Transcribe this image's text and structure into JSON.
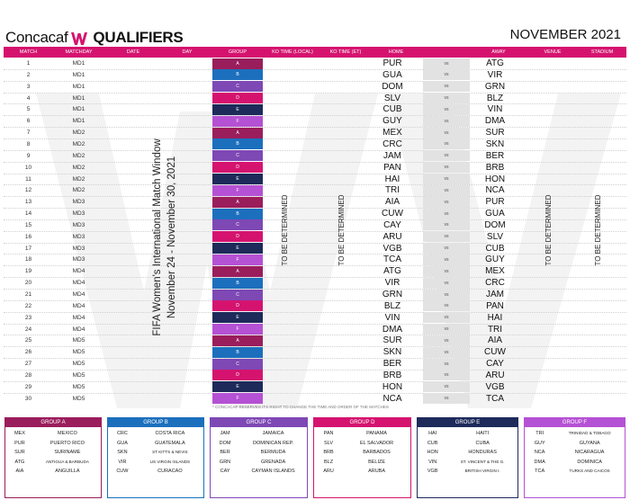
{
  "header": {
    "brand": "Concacaf",
    "title": "QUALIFIERS",
    "month": "NOVEMBER 2021",
    "brand_color": "#d5136f"
  },
  "columns": {
    "match": "MATCH",
    "matchday": "MATCHDAY",
    "date": "DATE",
    "day": "DAY",
    "group": "GROUP",
    "ko_local": "KO TIME (LOCAL)",
    "ko_et": "KO TIME (ET)",
    "home": "HOME",
    "away": "AWAY",
    "venue": "VENUE",
    "stadium": "STADIUM"
  },
  "window_title": "FIFA Women's International Match Window",
  "window_dates": "November 24 - November 30, 2021",
  "tbd": "TO BE DETERMINED",
  "vs_label": "vs",
  "group_colors": {
    "A": "#9a1d5c",
    "B": "#1c6fbd",
    "C": "#7e48b5",
    "D": "#d5136f",
    "E": "#1d2a5a",
    "F": "#b551d4"
  },
  "matches": [
    {
      "num": "1",
      "md": "MD1",
      "group": "A",
      "home": "PUR",
      "away": "ATG"
    },
    {
      "num": "2",
      "md": "MD1",
      "group": "B",
      "home": "GUA",
      "away": "VIR"
    },
    {
      "num": "3",
      "md": "MD1",
      "group": "C",
      "home": "DOM",
      "away": "GRN"
    },
    {
      "num": "4",
      "md": "MD1",
      "group": "D",
      "home": "SLV",
      "away": "BLZ"
    },
    {
      "num": "5",
      "md": "MD1",
      "group": "E",
      "home": "CUB",
      "away": "VIN"
    },
    {
      "num": "6",
      "md": "MD1",
      "group": "F",
      "home": "GUY",
      "away": "DMA"
    },
    {
      "num": "7",
      "md": "MD2",
      "group": "A",
      "home": "MEX",
      "away": "SUR"
    },
    {
      "num": "8",
      "md": "MD2",
      "group": "B",
      "home": "CRC",
      "away": "SKN"
    },
    {
      "num": "9",
      "md": "MD2",
      "group": "C",
      "home": "JAM",
      "away": "BER"
    },
    {
      "num": "10",
      "md": "MD2",
      "group": "D",
      "home": "PAN",
      "away": "BRB"
    },
    {
      "num": "11",
      "md": "MD2",
      "group": "E",
      "home": "HAI",
      "away": "HON"
    },
    {
      "num": "12",
      "md": "MD2",
      "group": "F",
      "home": "TRI",
      "away": "NCA"
    },
    {
      "num": "13",
      "md": "MD3",
      "group": "A",
      "home": "AIA",
      "away": "PUR"
    },
    {
      "num": "14",
      "md": "MD3",
      "group": "B",
      "home": "CUW",
      "away": "GUA"
    },
    {
      "num": "15",
      "md": "MD3",
      "group": "C",
      "home": "CAY",
      "away": "DOM"
    },
    {
      "num": "16",
      "md": "MD3",
      "group": "D",
      "home": "ARU",
      "away": "SLV"
    },
    {
      "num": "17",
      "md": "MD3",
      "group": "E",
      "home": "VGB",
      "away": "CUB"
    },
    {
      "num": "18",
      "md": "MD3",
      "group": "F",
      "home": "TCA",
      "away": "GUY"
    },
    {
      "num": "19",
      "md": "MD4",
      "group": "A",
      "home": "ATG",
      "away": "MEX"
    },
    {
      "num": "20",
      "md": "MD4",
      "group": "B",
      "home": "VIR",
      "away": "CRC"
    },
    {
      "num": "21",
      "md": "MD4",
      "group": "C",
      "home": "GRN",
      "away": "JAM"
    },
    {
      "num": "22",
      "md": "MD4",
      "group": "D",
      "home": "BLZ",
      "away": "PAN"
    },
    {
      "num": "23",
      "md": "MD4",
      "group": "E",
      "home": "VIN",
      "away": "HAI"
    },
    {
      "num": "24",
      "md": "MD4",
      "group": "F",
      "home": "DMA",
      "away": "TRI"
    },
    {
      "num": "25",
      "md": "MD5",
      "group": "A",
      "home": "SUR",
      "away": "AIA"
    },
    {
      "num": "26",
      "md": "MD5",
      "group": "B",
      "home": "SKN",
      "away": "CUW"
    },
    {
      "num": "27",
      "md": "MD5",
      "group": "C",
      "home": "BER",
      "away": "CAY"
    },
    {
      "num": "28",
      "md": "MD5",
      "group": "D",
      "home": "BRB",
      "away": "ARU"
    },
    {
      "num": "29",
      "md": "MD5",
      "group": "E",
      "home": "HON",
      "away": "VGB"
    },
    {
      "num": "30",
      "md": "MD5",
      "group": "F",
      "home": "NCA",
      "away": "TCA"
    }
  ],
  "disclaimer": "* CONCACAF RESERVES ITS RIGHT TO CHANGE THE TIME AND ORDER OF THE MATCHES",
  "groups": [
    {
      "label": "GROUP A",
      "key": "A",
      "teams": [
        {
          "code": "MEX",
          "name": "MEXICO"
        },
        {
          "code": "PUR",
          "name": "PUERTO RICO"
        },
        {
          "code": "SUR",
          "name": "SURINAME"
        },
        {
          "code": "ATG",
          "name": "ANTIGUA & BARBUDA"
        },
        {
          "code": "AIA",
          "name": "ANGUILLA"
        }
      ]
    },
    {
      "label": "GROUP B",
      "key": "B",
      "teams": [
        {
          "code": "CRC",
          "name": "COSTA RICA"
        },
        {
          "code": "GUA",
          "name": "GUATEMALA"
        },
        {
          "code": "SKN",
          "name": "ST KITTS & NEVIS"
        },
        {
          "code": "VIR",
          "name": "US VIRGIN ISLANDS"
        },
        {
          "code": "CUW",
          "name": "CURACAO"
        }
      ]
    },
    {
      "label": "GROUP C",
      "key": "C",
      "teams": [
        {
          "code": "JAM",
          "name": "JAMAICA"
        },
        {
          "code": "DOM",
          "name": "DOMINICAN REP."
        },
        {
          "code": "BER",
          "name": "BERMUDA"
        },
        {
          "code": "GRN",
          "name": "GRENADA"
        },
        {
          "code": "CAY",
          "name": "CAYMAN ISLANDS"
        }
      ]
    },
    {
      "label": "GROUP D",
      "key": "D",
      "teams": [
        {
          "code": "PAN",
          "name": "PANAMA"
        },
        {
          "code": "SLV",
          "name": "EL SALVADOR"
        },
        {
          "code": "BRB",
          "name": "BARBADOS"
        },
        {
          "code": "BLZ",
          "name": "BELIZE"
        },
        {
          "code": "ARU",
          "name": "ARUBA"
        }
      ]
    },
    {
      "label": "GROUP E",
      "key": "E",
      "teams": [
        {
          "code": "HAI",
          "name": "HAITI"
        },
        {
          "code": "CUB",
          "name": "CUBA"
        },
        {
          "code": "HON",
          "name": "HONDURAS"
        },
        {
          "code": "VIN",
          "name": "ST. VINCENT & THE G."
        },
        {
          "code": "VGB",
          "name": "BRITISH VIRGIN I."
        }
      ]
    },
    {
      "label": "GROUP F",
      "key": "F",
      "teams": [
        {
          "code": "TRI",
          "name": "TRINIDAD & TOBAGO"
        },
        {
          "code": "GUY",
          "name": "GUYANA"
        },
        {
          "code": "NCA",
          "name": "NICARAGUA"
        },
        {
          "code": "DMA",
          "name": "DOMINICA"
        },
        {
          "code": "TCA",
          "name": "TURKS AND CAICOS"
        }
      ]
    }
  ]
}
